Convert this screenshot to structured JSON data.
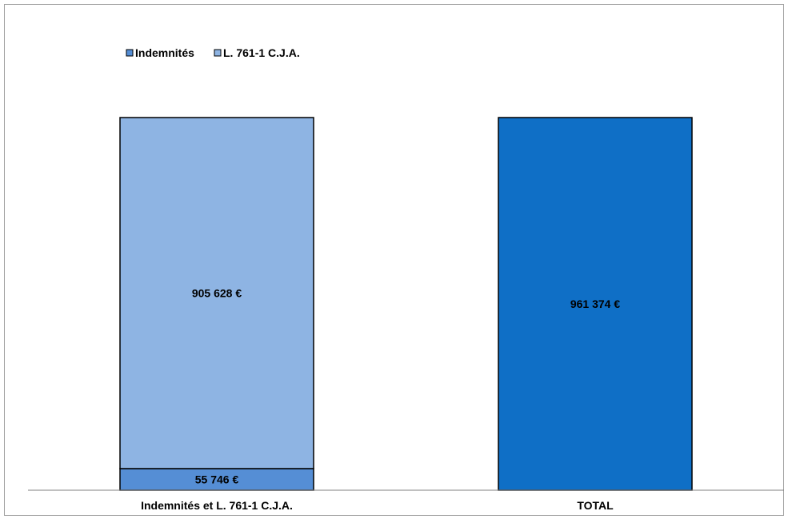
{
  "chart_data": {
    "type": "bar",
    "stacked": true,
    "title": "",
    "xlabel": "",
    "ylabel": "",
    "categories": [
      "Indemnités et L. 761-1 C.J.A.",
      "TOTAL"
    ],
    "series": [
      {
        "name": "Indemnités",
        "values": [
          55746,
          null
        ],
        "labels": [
          "55 746 €",
          ""
        ],
        "color": "#558ed5"
      },
      {
        "name": "L. 761-1 C.J.A.",
        "values": [
          905628,
          null
        ],
        "labels": [
          "905 628 €",
          ""
        ],
        "color": "#8eb4e3"
      },
      {
        "name": "",
        "values": [
          null,
          961374
        ],
        "labels": [
          "",
          "961 374 €"
        ],
        "color": "#0f6fc6"
      }
    ],
    "ylim": [
      0,
      961374
    ],
    "grid": false,
    "legend": "top-left",
    "legend_entries": [
      "Indemnités",
      "L. 761-1 C.J.A."
    ],
    "y_axis_visible": false
  }
}
